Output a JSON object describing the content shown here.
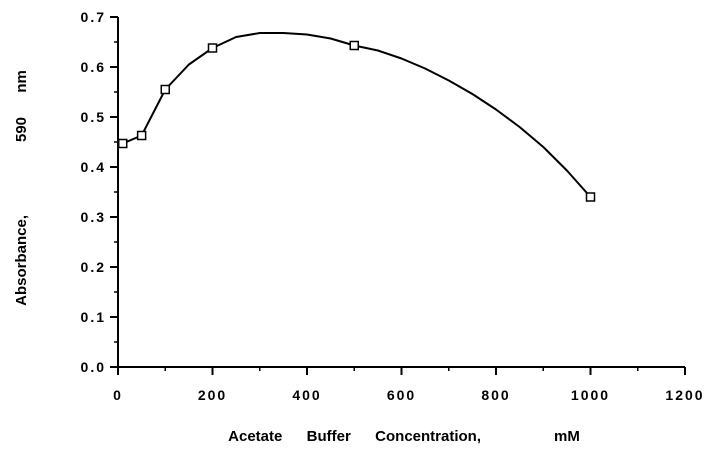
{
  "chart_data": {
    "type": "line",
    "xlabel": "Acetate  Buffer  Concentration,      mM",
    "ylabel": "Absorbance,      590  nm",
    "xlim": [
      0,
      1200
    ],
    "ylim": [
      0.0,
      0.7
    ],
    "x_ticks": [
      "0",
      "200",
      "400",
      "600",
      "800",
      "1000",
      "1200"
    ],
    "y_ticks": [
      "0.0",
      "0.1",
      "0.2",
      "0.3",
      "0.4",
      "0.5",
      "0.6",
      "0.7"
    ],
    "grid": false,
    "series": [
      {
        "points": [
          {
            "x": 10,
            "y": 0.447
          },
          {
            "x": 50,
            "y": 0.463
          },
          {
            "x": 100,
            "y": 0.555
          },
          {
            "x": 200,
            "y": 0.638
          },
          {
            "x": 500,
            "y": 0.643
          },
          {
            "x": 1000,
            "y": 0.34
          }
        ],
        "fit_curve": [
          {
            "x": 10,
            "y": 0.447
          },
          {
            "x": 50,
            "y": 0.463
          },
          {
            "x": 100,
            "y": 0.555
          },
          {
            "x": 150,
            "y": 0.605
          },
          {
            "x": 200,
            "y": 0.638
          },
          {
            "x": 250,
            "y": 0.66
          },
          {
            "x": 300,
            "y": 0.668
          },
          {
            "x": 350,
            "y": 0.668
          },
          {
            "x": 400,
            "y": 0.665
          },
          {
            "x": 450,
            "y": 0.657
          },
          {
            "x": 500,
            "y": 0.643
          },
          {
            "x": 550,
            "y": 0.633
          },
          {
            "x": 600,
            "y": 0.617
          },
          {
            "x": 650,
            "y": 0.597
          },
          {
            "x": 700,
            "y": 0.573
          },
          {
            "x": 750,
            "y": 0.546
          },
          {
            "x": 800,
            "y": 0.515
          },
          {
            "x": 850,
            "y": 0.48
          },
          {
            "x": 900,
            "y": 0.44
          },
          {
            "x": 950,
            "y": 0.393
          },
          {
            "x": 1000,
            "y": 0.34
          }
        ]
      }
    ]
  }
}
